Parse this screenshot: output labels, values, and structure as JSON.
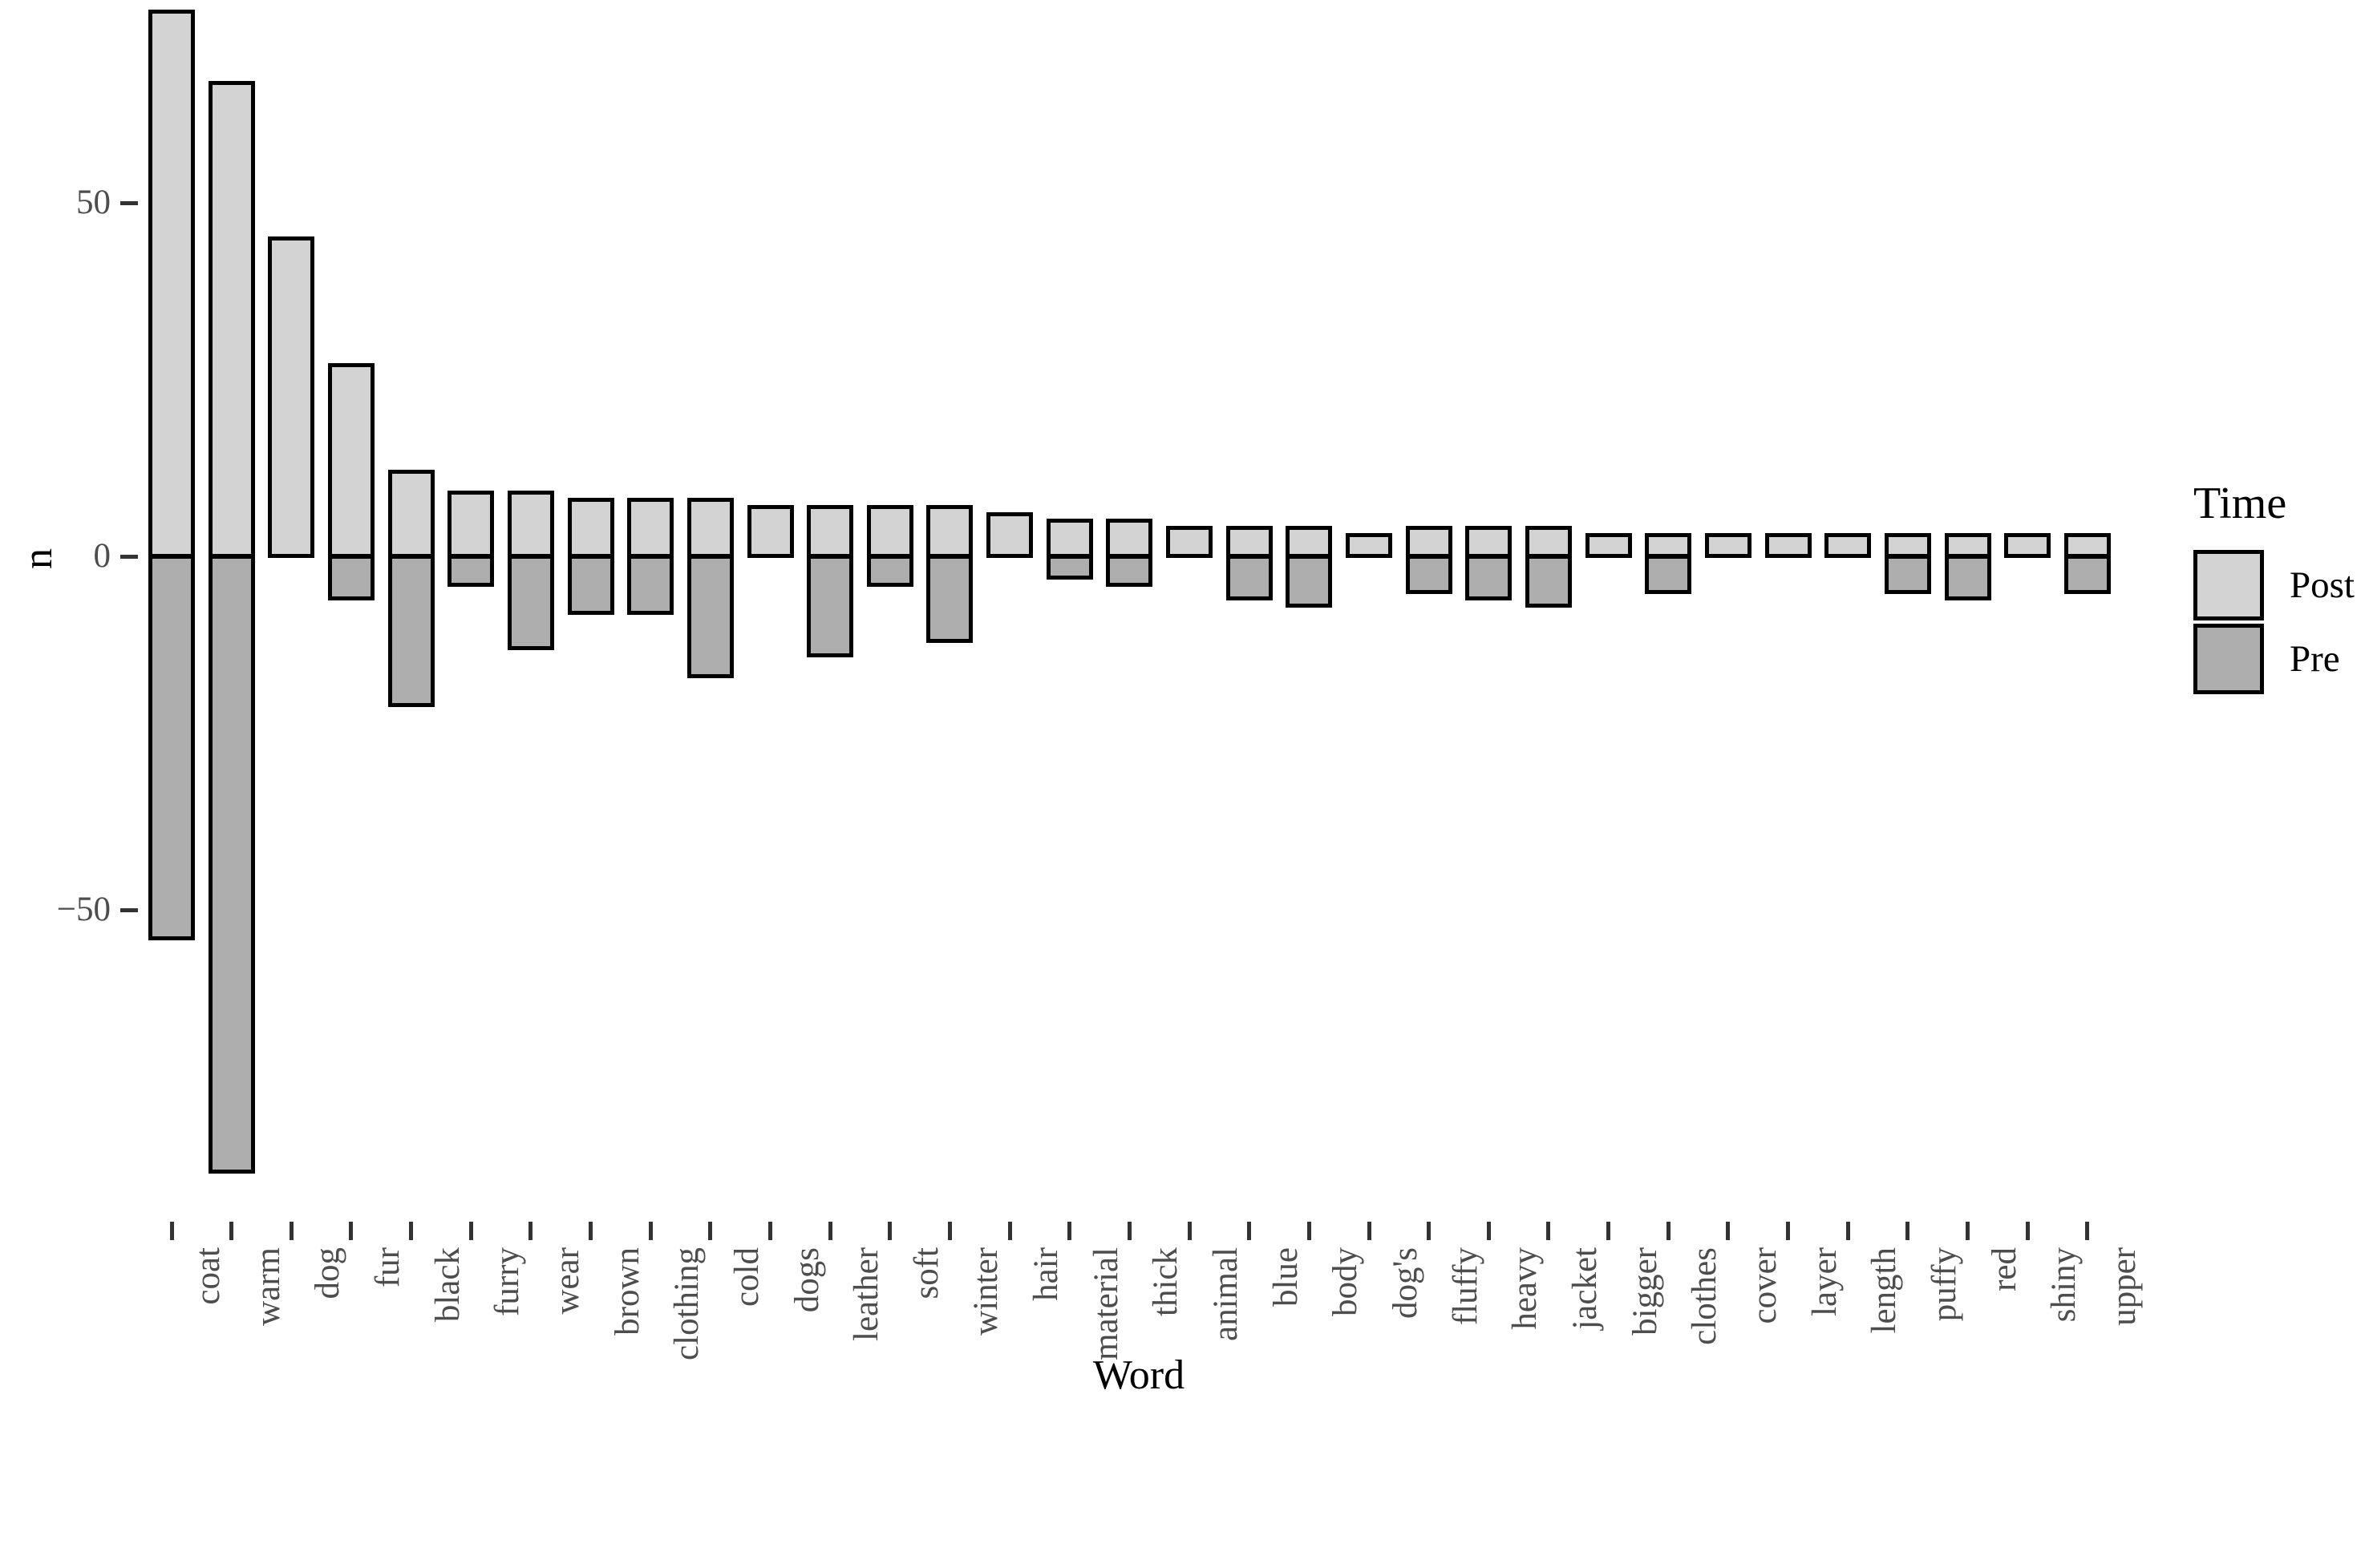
{
  "chart_data": {
    "type": "bar",
    "subtype": "diverging-stacked-column",
    "title": "",
    "xlabel": "Word",
    "ylabel": "n",
    "grid": false,
    "legend": {
      "title": "Time",
      "position": "right"
    },
    "y_ticks": [
      {
        "label": "50",
        "value": 50
      },
      {
        "label": "0",
        "value": 0
      },
      {
        "label": "−50",
        "value": -50
      }
    ],
    "ylim": [
      -95,
      80
    ],
    "categories": [
      "coat",
      "warm",
      "dog",
      "fur",
      "black",
      "furry",
      "wear",
      "brown",
      "clothing",
      "cold",
      "dogs",
      "leather",
      "soft",
      "winter",
      "hair",
      "material",
      "thick",
      "animal",
      "blue",
      "body",
      "dog's",
      "fluffy",
      "heavy",
      "jacket",
      "bigger",
      "clothes",
      "cover",
      "layer",
      "length",
      "puffy",
      "red",
      "shiny",
      "upper"
    ],
    "series": [
      {
        "name": "Post",
        "color": "#d3d3d3",
        "values": [
          77,
          67,
          45,
          27,
          12,
          9,
          9,
          8,
          8,
          8,
          7,
          7,
          7,
          7,
          6,
          5,
          5,
          4,
          4,
          4,
          3,
          4,
          4,
          4,
          3,
          3,
          3,
          3,
          3,
          3,
          3,
          3,
          3
        ]
      },
      {
        "name": "Pre",
        "color": "#aeaeae",
        "values": [
          -54,
          -87,
          0,
          -6,
          -21,
          -4,
          -13,
          -8,
          -8,
          -17,
          0,
          -14,
          -4,
          -12,
          0,
          -3,
          -4,
          0,
          -6,
          -7,
          0,
          -5,
          -6,
          -7,
          0,
          -5,
          0,
          0,
          0,
          -5,
          -6,
          0,
          -5
        ]
      }
    ],
    "bar_outline_color": "#000000",
    "tick_label_color": "#4d4d4d"
  }
}
